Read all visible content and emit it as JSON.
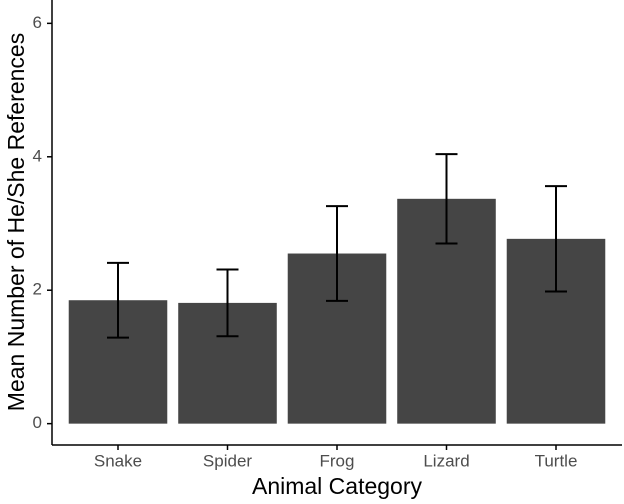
{
  "chart_data": {
    "type": "bar",
    "x_label": "Animal Category",
    "y_label": "Mean Number of He/She References",
    "categories": [
      "Snake",
      "Spider",
      "Frog",
      "Lizard",
      "Turtle"
    ],
    "values": [
      1.85,
      1.81,
      2.55,
      3.37,
      2.77
    ],
    "errors": [
      0.56,
      0.5,
      0.71,
      0.67,
      0.79
    ],
    "color": "#454545",
    "ylim": [
      -0.32,
      6.35
    ],
    "yticks": [
      0,
      2,
      4,
      6
    ],
    "grid": false
  }
}
